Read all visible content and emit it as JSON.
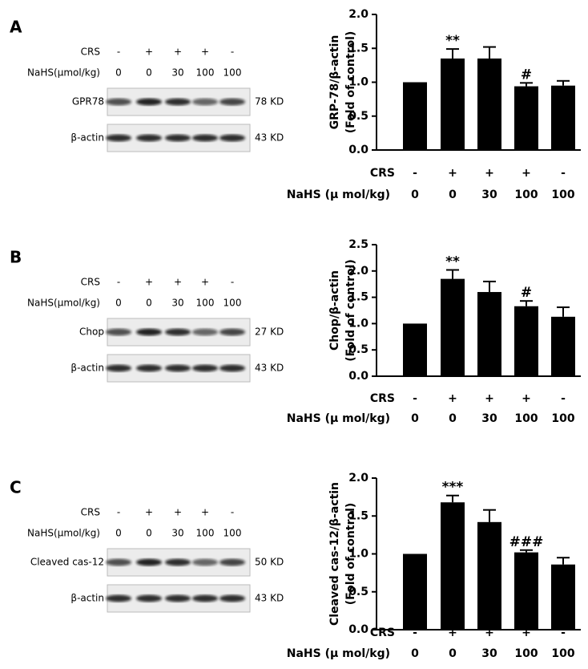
{
  "chart_data": [
    {
      "type": "bar",
      "ylabel": [
        "GRP-78/β-actin",
        "(Fold of control)"
      ],
      "values": [
        1.0,
        1.35,
        1.35,
        0.94,
        0.95
      ],
      "errors": [
        0,
        0.14,
        0.17,
        0.05,
        0.07
      ],
      "value_annotations": [
        null,
        "**",
        null,
        "#",
        null
      ],
      "color": "#000000",
      "ylim": [
        0,
        2
      ],
      "yticks": [
        {
          "value": 0,
          "label": "0.0"
        },
        {
          "value": 0.5,
          "label": "0.5"
        },
        {
          "value": 1,
          "label": "1.0"
        },
        {
          "value": 1.5,
          "label": "1.5"
        },
        {
          "value": 2,
          "label": "2.0"
        }
      ],
      "condition_rows": [
        {
          "name": "CRS",
          "labels": [
            "-",
            "+",
            "+",
            "+",
            "-"
          ]
        },
        {
          "name": "NaHS (μ mol/kg)",
          "labels": [
            "0",
            "0",
            "30",
            "100",
            "100"
          ]
        }
      ]
    },
    {
      "type": "bar",
      "ylabel": [
        "Chop/β-actin",
        "(Fold of control)"
      ],
      "values": [
        1.0,
        1.85,
        1.6,
        1.33,
        1.13
      ],
      "errors": [
        0,
        0.17,
        0.2,
        0.1,
        0.18
      ],
      "value_annotations": [
        null,
        "**",
        null,
        "#",
        null
      ],
      "color": "#000000",
      "ylim": [
        0,
        2.5
      ],
      "yticks": [
        {
          "value": 0,
          "label": "0.0"
        },
        {
          "value": 0.5,
          "label": "0.5"
        },
        {
          "value": 1,
          "label": "1.0"
        },
        {
          "value": 1.5,
          "label": "1.5"
        },
        {
          "value": 2,
          "label": "2.0"
        },
        {
          "value": 2.5,
          "label": "2.5"
        }
      ],
      "condition_rows": [
        {
          "name": "CRS",
          "labels": [
            "-",
            "+",
            "+",
            "+",
            "-"
          ]
        },
        {
          "name": "NaHS (μ mol/kg)",
          "labels": [
            "0",
            "0",
            "30",
            "100",
            "100"
          ]
        }
      ]
    },
    {
      "type": "bar",
      "ylabel": [
        "Cleaved cas-12/β-actin",
        "(Fold of control)"
      ],
      "values": [
        1.0,
        1.68,
        1.42,
        1.02,
        0.86
      ],
      "errors": [
        0,
        0.09,
        0.16,
        0.03,
        0.09
      ],
      "value_annotations": [
        null,
        "***",
        null,
        "###",
        null
      ],
      "color": "#000000",
      "ylim": [
        0,
        2
      ],
      "yticks": [
        {
          "value": 0,
          "label": "0.0"
        },
        {
          "value": 0.5,
          "label": "0.5"
        },
        {
          "value": 1,
          "label": "1.0"
        },
        {
          "value": 1.5,
          "label": "1.5"
        },
        {
          "value": 2,
          "label": "2.0"
        }
      ],
      "condition_rows": [
        {
          "name": "CRS",
          "labels": [
            "-",
            "+",
            "+",
            "+",
            "-"
          ]
        },
        {
          "name": "NaHS (μ mol/kg)",
          "labels": [
            "0",
            "0",
            "30",
            "100",
            "100"
          ]
        }
      ]
    }
  ],
  "blots": [
    {
      "panel": "A",
      "rows": [
        {
          "name": "CRS",
          "labels": [
            "-",
            "+",
            "+",
            "+",
            "-"
          ]
        },
        {
          "name": "NaHS(μmol/kg)",
          "labels": [
            "0",
            "0",
            "30",
            "100",
            "100"
          ]
        }
      ],
      "bands": [
        {
          "name": "GPR78",
          "size": "78 KD"
        },
        {
          "name": "β-actin",
          "size": "43 KD"
        }
      ]
    },
    {
      "panel": "B",
      "rows": [
        {
          "name": "CRS",
          "labels": [
            "-",
            "+",
            "+",
            "+",
            "-"
          ]
        },
        {
          "name": "NaHS(μmol/kg)",
          "labels": [
            "0",
            "0",
            "30",
            "100",
            "100"
          ]
        }
      ],
      "bands": [
        {
          "name": "Chop",
          "size": "27 KD"
        },
        {
          "name": "β-actin",
          "size": "43 KD"
        }
      ]
    },
    {
      "panel": "C",
      "rows": [
        {
          "name": "CRS",
          "labels": [
            "-",
            "+",
            "+",
            "+",
            "-"
          ]
        },
        {
          "name": "NaHS(μmol/kg)",
          "labels": [
            "0",
            "0",
            "30",
            "100",
            "100"
          ]
        }
      ],
      "bands": [
        {
          "name": "Cleaved cas-12",
          "size": "50 KD"
        },
        {
          "name": "β-actin",
          "size": "43 KD"
        }
      ]
    }
  ]
}
